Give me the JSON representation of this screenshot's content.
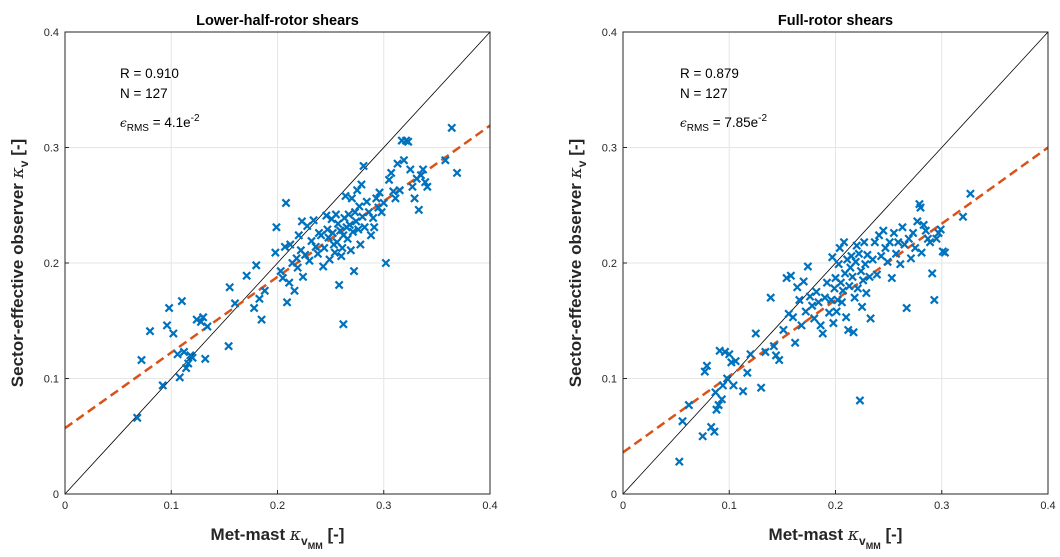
{
  "chart_data": [
    {
      "type": "scatter",
      "title": "Lower-half-rotor shears",
      "xlabel": {
        "text": "Met-mast ",
        "symbol": "κ",
        "sub": "v",
        "subsub": "MM",
        "unit": " [-]"
      },
      "ylabel": {
        "text": "Sector-effective observer ",
        "symbol": "κ",
        "sub": "v",
        "unit": " [-]"
      },
      "xlim": [
        0,
        0.4
      ],
      "ylim": [
        0,
        0.4
      ],
      "xticks": [
        "0",
        "0.1",
        "0.2",
        "0.3",
        "0.4"
      ],
      "yticks": [
        "0",
        "0.1",
        "0.2",
        "0.3",
        "0.4"
      ],
      "grid": true,
      "annotations": {
        "r": "R = 0.910",
        "n": "N = 127",
        "rms_prefix": "ϵ",
        "rms_sub": "RMS",
        "rms_value": " = 4.1e",
        "rms_exp": "-2"
      },
      "identity_line": true,
      "fit_line": {
        "intercept": 0.057,
        "slope": 0.655
      },
      "colors": {
        "points": "#0072bd",
        "fit": "#d95319",
        "identity": "#000000"
      },
      "points": [
        [
          0.068,
          0.066
        ],
        [
          0.072,
          0.116
        ],
        [
          0.08,
          0.141
        ],
        [
          0.092,
          0.094
        ],
        [
          0.096,
          0.146
        ],
        [
          0.098,
          0.161
        ],
        [
          0.102,
          0.139
        ],
        [
          0.106,
          0.121
        ],
        [
          0.108,
          0.101
        ],
        [
          0.11,
          0.167
        ],
        [
          0.112,
          0.123
        ],
        [
          0.114,
          0.109
        ],
        [
          0.116,
          0.113
        ],
        [
          0.118,
          0.12
        ],
        [
          0.12,
          0.118
        ],
        [
          0.124,
          0.151
        ],
        [
          0.128,
          0.149
        ],
        [
          0.13,
          0.153
        ],
        [
          0.132,
          0.117
        ],
        [
          0.134,
          0.145
        ],
        [
          0.154,
          0.128
        ],
        [
          0.155,
          0.179
        ],
        [
          0.16,
          0.165
        ],
        [
          0.171,
          0.189
        ],
        [
          0.178,
          0.161
        ],
        [
          0.18,
          0.198
        ],
        [
          0.183,
          0.169
        ],
        [
          0.185,
          0.151
        ],
        [
          0.188,
          0.176
        ],
        [
          0.198,
          0.209
        ],
        [
          0.199,
          0.231
        ],
        [
          0.203,
          0.193
        ],
        [
          0.205,
          0.187
        ],
        [
          0.207,
          0.214
        ],
        [
          0.208,
          0.252
        ],
        [
          0.209,
          0.166
        ],
        [
          0.211,
          0.183
        ],
        [
          0.212,
          0.216
        ],
        [
          0.214,
          0.2
        ],
        [
          0.216,
          0.176
        ],
        [
          0.218,
          0.204
        ],
        [
          0.219,
          0.196
        ],
        [
          0.22,
          0.224
        ],
        [
          0.222,
          0.211
        ],
        [
          0.223,
          0.236
        ],
        [
          0.224,
          0.188
        ],
        [
          0.226,
          0.207
        ],
        [
          0.228,
          0.232
        ],
        [
          0.23,
          0.202
        ],
        [
          0.232,
          0.219
        ],
        [
          0.234,
          0.237
        ],
        [
          0.236,
          0.214
        ],
        [
          0.238,
          0.208
        ],
        [
          0.239,
          0.226
        ],
        [
          0.241,
          0.224
        ],
        [
          0.243,
          0.197
        ],
        [
          0.244,
          0.213
        ],
        [
          0.246,
          0.241
        ],
        [
          0.247,
          0.229
        ],
        [
          0.248,
          0.222
        ],
        [
          0.249,
          0.203
        ],
        [
          0.251,
          0.238
        ],
        [
          0.252,
          0.226
        ],
        [
          0.253,
          0.216
        ],
        [
          0.254,
          0.209
        ],
        [
          0.255,
          0.242
        ],
        [
          0.256,
          0.218
        ],
        [
          0.257,
          0.234
        ],
        [
          0.258,
          0.181
        ],
        [
          0.259,
          0.228
        ],
        [
          0.26,
          0.206
        ],
        [
          0.261,
          0.213
        ],
        [
          0.262,
          0.147
        ],
        [
          0.262,
          0.224
        ],
        [
          0.263,
          0.239
        ],
        [
          0.264,
          0.258
        ],
        [
          0.265,
          0.231
        ],
        [
          0.266,
          0.221
        ],
        [
          0.267,
          0.242
        ],
        [
          0.268,
          0.233
        ],
        [
          0.269,
          0.211
        ],
        [
          0.27,
          0.256
        ],
        [
          0.271,
          0.227
        ],
        [
          0.272,
          0.193
        ],
        [
          0.273,
          0.244
        ],
        [
          0.274,
          0.236
        ],
        [
          0.275,
          0.263
        ],
        [
          0.276,
          0.229
        ],
        [
          0.277,
          0.249
        ],
        [
          0.278,
          0.216
        ],
        [
          0.279,
          0.268
        ],
        [
          0.28,
          0.24
        ],
        [
          0.281,
          0.284
        ],
        [
          0.282,
          0.231
        ],
        [
          0.284,
          0.253
        ],
        [
          0.286,
          0.244
        ],
        [
          0.288,
          0.224
        ],
        [
          0.29,
          0.239
        ],
        [
          0.291,
          0.231
        ],
        [
          0.293,
          0.256
        ],
        [
          0.295,
          0.248
        ],
        [
          0.296,
          0.261
        ],
        [
          0.298,
          0.244
        ],
        [
          0.3,
          0.252
        ],
        [
          0.302,
          0.2
        ],
        [
          0.305,
          0.272
        ],
        [
          0.307,
          0.278
        ],
        [
          0.309,
          0.262
        ],
        [
          0.311,
          0.256
        ],
        [
          0.313,
          0.286
        ],
        [
          0.315,
          0.263
        ],
        [
          0.317,
          0.306
        ],
        [
          0.319,
          0.289
        ],
        [
          0.321,
          0.306
        ],
        [
          0.323,
          0.305
        ],
        [
          0.325,
          0.281
        ],
        [
          0.327,
          0.266
        ],
        [
          0.329,
          0.256
        ],
        [
          0.331,
          0.273
        ],
        [
          0.333,
          0.246
        ],
        [
          0.335,
          0.276
        ],
        [
          0.337,
          0.281
        ],
        [
          0.339,
          0.27
        ],
        [
          0.341,
          0.266
        ],
        [
          0.358,
          0.289
        ],
        [
          0.364,
          0.317
        ],
        [
          0.369,
          0.278
        ]
      ]
    },
    {
      "type": "scatter",
      "title": "Full-rotor shears",
      "xlabel": {
        "text": "Met-mast ",
        "symbol": "κ",
        "sub": "v",
        "subsub": "MM",
        "unit": " [-]"
      },
      "ylabel": {
        "text": "Sector-effective observer ",
        "symbol": "κ",
        "sub": "v",
        "unit": " [-]"
      },
      "xlim": [
        0,
        0.4
      ],
      "ylim": [
        0,
        0.4
      ],
      "xticks": [
        "0",
        "0.1",
        "0.2",
        "0.3",
        "0.4"
      ],
      "yticks": [
        "0",
        "0.1",
        "0.2",
        "0.3",
        "0.4"
      ],
      "grid": true,
      "annotations": {
        "r": "R = 0.879",
        "n": "N = 127",
        "rms_prefix": "ϵ",
        "rms_sub": "RMS",
        "rms_value": " = 7.85e",
        "rms_exp": "-2"
      },
      "identity_line": true,
      "fit_line": {
        "intercept": 0.036,
        "slope": 0.66
      },
      "colors": {
        "points": "#0072bd",
        "fit": "#d95319",
        "identity": "#000000"
      },
      "points": [
        [
          0.053,
          0.028
        ],
        [
          0.056,
          0.063
        ],
        [
          0.062,
          0.077
        ],
        [
          0.075,
          0.05
        ],
        [
          0.077,
          0.106
        ],
        [
          0.079,
          0.111
        ],
        [
          0.083,
          0.058
        ],
        [
          0.086,
          0.054
        ],
        [
          0.087,
          0.088
        ],
        [
          0.088,
          0.073
        ],
        [
          0.09,
          0.077
        ],
        [
          0.091,
          0.124
        ],
        [
          0.093,
          0.082
        ],
        [
          0.094,
          0.094
        ],
        [
          0.096,
          0.123
        ],
        [
          0.098,
          0.1
        ],
        [
          0.1,
          0.121
        ],
        [
          0.102,
          0.114
        ],
        [
          0.104,
          0.094
        ],
        [
          0.106,
          0.115
        ],
        [
          0.113,
          0.089
        ],
        [
          0.117,
          0.105
        ],
        [
          0.12,
          0.121
        ],
        [
          0.125,
          0.139
        ],
        [
          0.13,
          0.092
        ],
        [
          0.134,
          0.123
        ],
        [
          0.139,
          0.17
        ],
        [
          0.142,
          0.128
        ],
        [
          0.144,
          0.12
        ],
        [
          0.147,
          0.116
        ],
        [
          0.151,
          0.142
        ],
        [
          0.154,
          0.187
        ],
        [
          0.156,
          0.156
        ],
        [
          0.158,
          0.189
        ],
        [
          0.16,
          0.153
        ],
        [
          0.162,
          0.131
        ],
        [
          0.164,
          0.179
        ],
        [
          0.166,
          0.168
        ],
        [
          0.168,
          0.146
        ],
        [
          0.17,
          0.184
        ],
        [
          0.172,
          0.158
        ],
        [
          0.174,
          0.197
        ],
        [
          0.176,
          0.171
        ],
        [
          0.178,
          0.163
        ],
        [
          0.18,
          0.152
        ],
        [
          0.182,
          0.175
        ],
        [
          0.184,
          0.166
        ],
        [
          0.186,
          0.146
        ],
        [
          0.188,
          0.139
        ],
        [
          0.19,
          0.17
        ],
        [
          0.192,
          0.183
        ],
        [
          0.194,
          0.157
        ],
        [
          0.196,
          0.168
        ],
        [
          0.197,
          0.205
        ],
        [
          0.198,
          0.148
        ],
        [
          0.199,
          0.178
        ],
        [
          0.2,
          0.187
        ],
        [
          0.201,
          0.158
        ],
        [
          0.202,
          0.168
        ],
        [
          0.203,
          0.199
        ],
        [
          0.204,
          0.213
        ],
        [
          0.205,
          0.183
        ],
        [
          0.206,
          0.166
        ],
        [
          0.207,
          0.176
        ],
        [
          0.208,
          0.218
        ],
        [
          0.209,
          0.191
        ],
        [
          0.21,
          0.153
        ],
        [
          0.211,
          0.203
        ],
        [
          0.212,
          0.142
        ],
        [
          0.213,
          0.18
        ],
        [
          0.214,
          0.196
        ],
        [
          0.215,
          0.206
        ],
        [
          0.216,
          0.188
        ],
        [
          0.217,
          0.14
        ],
        [
          0.218,
          0.17
        ],
        [
          0.219,
          0.201
        ],
        [
          0.22,
          0.215
        ],
        [
          0.221,
          0.178
        ],
        [
          0.222,
          0.208
        ],
        [
          0.223,
          0.081
        ],
        [
          0.224,
          0.193
        ],
        [
          0.225,
          0.162
        ],
        [
          0.226,
          0.185
        ],
        [
          0.227,
          0.218
        ],
        [
          0.228,
          0.199
        ],
        [
          0.229,
          0.174
        ],
        [
          0.23,
          0.207
        ],
        [
          0.232,
          0.188
        ],
        [
          0.233,
          0.152
        ],
        [
          0.235,
          0.203
        ],
        [
          0.237,
          0.218
        ],
        [
          0.239,
          0.19
        ],
        [
          0.241,
          0.224
        ],
        [
          0.243,
          0.206
        ],
        [
          0.245,
          0.228
        ],
        [
          0.247,
          0.213
        ],
        [
          0.249,
          0.201
        ],
        [
          0.251,
          0.218
        ],
        [
          0.253,
          0.187
        ],
        [
          0.255,
          0.226
        ],
        [
          0.257,
          0.208
        ],
        [
          0.259,
          0.218
        ],
        [
          0.261,
          0.199
        ],
        [
          0.263,
          0.231
        ],
        [
          0.265,
          0.216
        ],
        [
          0.267,
          0.161
        ],
        [
          0.269,
          0.221
        ],
        [
          0.271,
          0.204
        ],
        [
          0.273,
          0.226
        ],
        [
          0.275,
          0.213
        ],
        [
          0.277,
          0.236
        ],
        [
          0.279,
          0.251
        ],
        [
          0.28,
          0.248
        ],
        [
          0.281,
          0.209
        ],
        [
          0.283,
          0.233
        ],
        [
          0.285,
          0.228
        ],
        [
          0.287,
          0.221
        ],
        [
          0.289,
          0.218
        ],
        [
          0.291,
          0.191
        ],
        [
          0.293,
          0.168
        ],
        [
          0.295,
          0.221
        ],
        [
          0.297,
          0.226
        ],
        [
          0.299,
          0.229
        ],
        [
          0.301,
          0.21
        ],
        [
          0.303,
          0.209
        ],
        [
          0.32,
          0.24
        ],
        [
          0.327,
          0.26
        ]
      ]
    }
  ]
}
